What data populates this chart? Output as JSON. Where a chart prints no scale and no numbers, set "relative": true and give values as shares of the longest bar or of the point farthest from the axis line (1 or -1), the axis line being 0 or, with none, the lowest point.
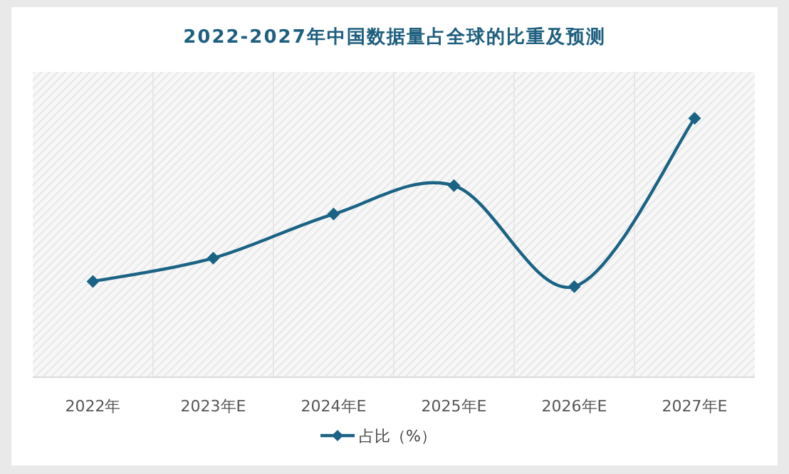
{
  "chart_data": {
    "type": "line",
    "title": "2022-2027年中国数据量占全球的比重及预测",
    "relative": true,
    "categories": [
      "2022年",
      "2023年E",
      "2024年E",
      "2025年E",
      "2026年E",
      "2027年E"
    ],
    "series": [
      {
        "name": "占比（%）",
        "color": "#1b6384",
        "values": [
          0.37,
          0.46,
          0.63,
          0.74,
          0.35,
          1
        ]
      }
    ],
    "marker": "diamond",
    "line_style": "solid",
    "grid": "x",
    "legend": "bottom"
  }
}
